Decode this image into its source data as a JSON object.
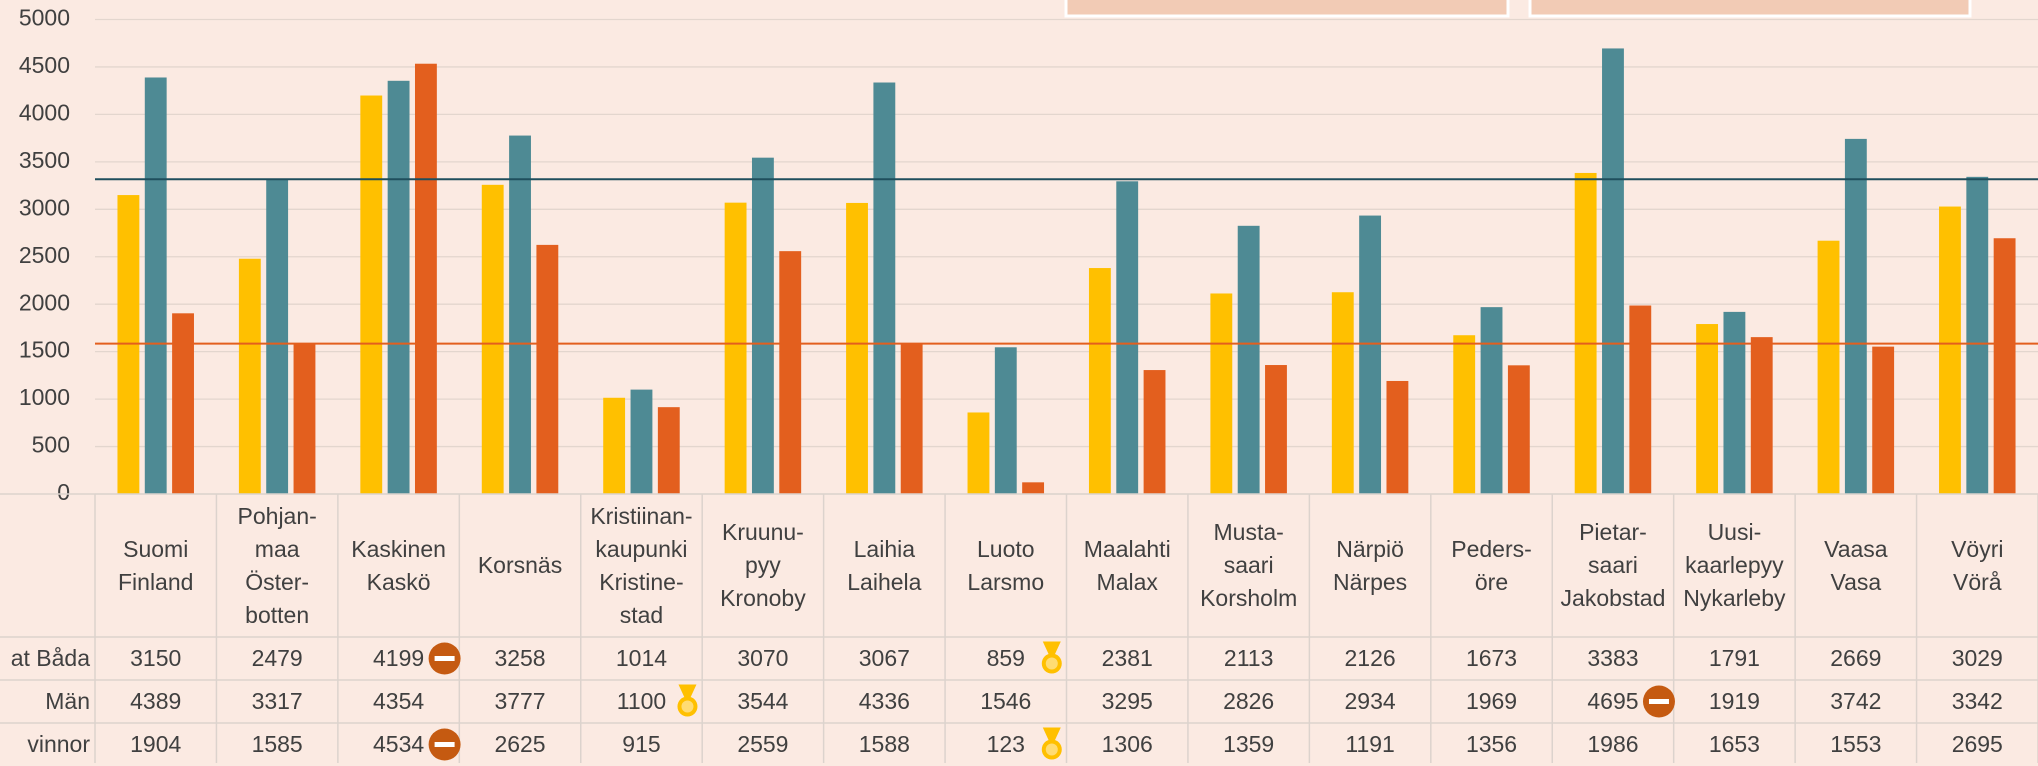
{
  "chart_data": {
    "type": "bar",
    "categories": [
      "Suomi\nFinland",
      "Pohjan-\nmaa\nÖster-\nbotten",
      "Kaskinen\nKaskö",
      "Korsnäs",
      "Kristiinan-\nkaupunki\nKristine-\nstad",
      "Kruunu-\npyy\nKronoby",
      "Laihia\nLaihela",
      "Luoto\nLarsmo",
      "Maalahti\nMalax",
      "Musta-\nsaari\nKorsholm",
      "Närpiö\nNärpes",
      "Peders-\nöre",
      "Pietar-\nsaari\nJakobstad",
      "Uusi-\nkaarlepyy\nNykarleby",
      "Vaasa\nVasa",
      "Vöyri\nVörå"
    ],
    "series": [
      {
        "name": "at Båda",
        "color": "#FFC000",
        "values": [
          3150,
          2479,
          4199,
          3258,
          1014,
          3070,
          3067,
          859,
          2381,
          2113,
          2126,
          1673,
          3383,
          1791,
          2669,
          3029
        ]
      },
      {
        "name": "Män",
        "color": "#4E8A94",
        "line_color": "#1F4E5C",
        "values": [
          4389,
          3317,
          4354,
          3777,
          1100,
          3544,
          4336,
          1546,
          3295,
          2826,
          2934,
          1969,
          4695,
          1919,
          3742,
          3342
        ]
      },
      {
        "name": "vinnor",
        "color": "#E35F1E",
        "line_color": "#E35F1E",
        "values": [
          1904,
          1585,
          4534,
          2625,
          915,
          2559,
          1588,
          123,
          1306,
          1359,
          1191,
          1356,
          1986,
          1653,
          1553,
          2695
        ]
      }
    ],
    "reference_category": 1,
    "ylim": [
      0,
      5000
    ],
    "yticks": [
      0,
      500,
      1000,
      1500,
      2000,
      2500,
      3000,
      3500,
      4000,
      4500,
      5000
    ],
    "grid": true
  }
}
